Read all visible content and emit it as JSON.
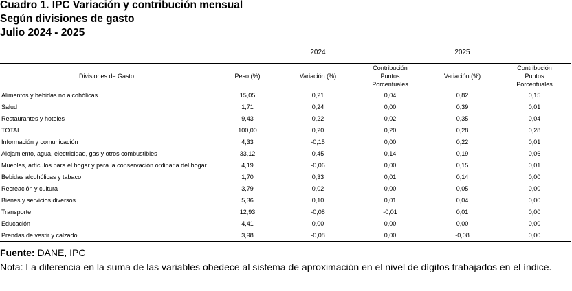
{
  "header": {
    "lines": [
      "Cuadro 1. IPC Variación y contribución mensual",
      "Según divisiones de gasto",
      "Julio 2024 - 2025"
    ]
  },
  "table": {
    "years": [
      "2024",
      "2025"
    ],
    "columns": [
      "Divisiones de Gasto",
      "Peso (%)",
      "Variación (%)",
      "Contribución Puntos Porcentuales",
      "Variación (%)",
      "Contribución Puntos Porcentuales"
    ],
    "rows": [
      [
        "Alimentos y bebidas no alcohólicas",
        "15,05",
        "0,21",
        "0,04",
        "0,82",
        "0,15"
      ],
      [
        "Salud",
        "1,71",
        "0,24",
        "0,00",
        "0,39",
        "0,01"
      ],
      [
        "Restaurantes y hoteles",
        "9,43",
        "0,22",
        "0,02",
        "0,35",
        "0,04"
      ],
      [
        "TOTAL",
        "100,00",
        "0,20",
        "0,20",
        "0,28",
        "0,28"
      ],
      [
        "Información y comunicación",
        "4,33",
        "-0,15",
        "0,00",
        "0,22",
        "0,01"
      ],
      [
        "Alojamiento, agua, electricidad, gas y otros combustibles",
        "33,12",
        "0,45",
        "0,14",
        "0,19",
        "0,06"
      ],
      [
        "Muebles, artículos para el hogar y para la conservación ordinaria del hogar",
        "4,19",
        "-0,06",
        "0,00",
        "0,15",
        "0,01"
      ],
      [
        "Bebidas alcohólicas y tabaco",
        "1,70",
        "0,33",
        "0,01",
        "0,14",
        "0,00"
      ],
      [
        "Recreación y cultura",
        "3,79",
        "0,02",
        "0,00",
        "0,05",
        "0,00"
      ],
      [
        "Bienes y servicios diversos",
        "5,36",
        "0,10",
        "0,01",
        "0,04",
        "0,00"
      ],
      [
        "Transporte",
        "12,93",
        "-0,08",
        "-0,01",
        "0,01",
        "0,00"
      ],
      [
        "Educación",
        "4,41",
        "0,00",
        "0,00",
        "0,00",
        "0,00"
      ],
      [
        "Prendas de vestir y calzado",
        "3,98",
        "-0,08",
        "0,00",
        "-0,08",
        "0,00"
      ]
    ]
  },
  "footer": {
    "source_label": "Fuente:",
    "source": "DANE, IPC",
    "note_label": "Nota:",
    "note": "La diferencia en la suma de las variables obedece al sistema de aproximación en el nivel de dígitos trabajados en el índice."
  }
}
